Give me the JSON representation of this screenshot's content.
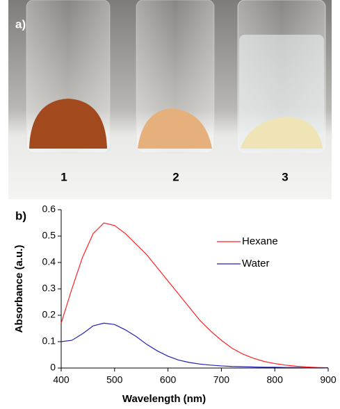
{
  "photo": {
    "label": "a)",
    "sample_labels": [
      "1",
      "2",
      "3"
    ]
  },
  "chart_data": {
    "type": "line",
    "panel_label": "b)",
    "x_label": "Wavelength (nm)",
    "y_label": "Absorbance (a.u.)",
    "x": [
      400,
      420,
      440,
      460,
      480,
      500,
      520,
      540,
      560,
      580,
      600,
      620,
      640,
      660,
      680,
      700,
      720,
      740,
      760,
      780,
      800,
      820,
      840,
      860,
      880,
      900
    ],
    "series": [
      {
        "name": "Hexane",
        "color": "#ff2020",
        "values": [
          0.17,
          0.3,
          0.42,
          0.51,
          0.55,
          0.54,
          0.51,
          0.47,
          0.43,
          0.38,
          0.33,
          0.28,
          0.23,
          0.18,
          0.14,
          0.105,
          0.075,
          0.053,
          0.037,
          0.025,
          0.017,
          0.011,
          0.007,
          0.004,
          0.002,
          0.001
        ]
      },
      {
        "name": "Water",
        "color": "#2020b0",
        "values": [
          0.1,
          0.105,
          0.13,
          0.16,
          0.17,
          0.165,
          0.145,
          0.12,
          0.09,
          0.065,
          0.045,
          0.03,
          0.021,
          0.015,
          0.011,
          0.008,
          0.006,
          0.005,
          0.004,
          0.003,
          0.003,
          0.002,
          0.002,
          0.001,
          0.001,
          0.001
        ]
      }
    ],
    "xlim": [
      400,
      900
    ],
    "ylim": [
      0,
      0.6
    ],
    "xticks": [
      400,
      500,
      600,
      700,
      800,
      900
    ],
    "yticks": [
      0,
      0.1,
      0.2,
      0.3,
      0.4,
      0.5,
      0.6
    ],
    "legend": "upper-right"
  }
}
